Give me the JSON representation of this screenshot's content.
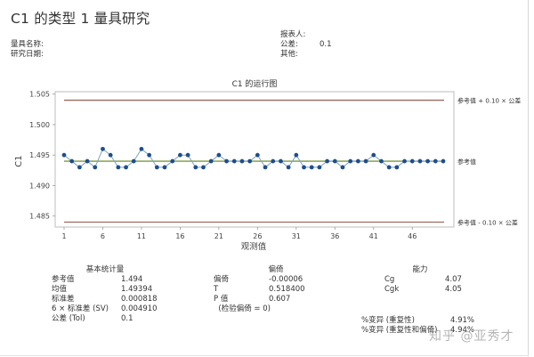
{
  "header": {
    "title": "C1 的类型 1 量具研究",
    "left_fields": [
      {
        "label": "量具名称:",
        "value": ""
      },
      {
        "label": "研究日期:",
        "value": ""
      }
    ],
    "right_fields": [
      {
        "label": "报表人:",
        "value": ""
      },
      {
        "label": "公差:",
        "value": "0.1"
      },
      {
        "label": "其他:",
        "value": ""
      }
    ]
  },
  "chart_data": {
    "type": "line",
    "title": "C1 的运行图",
    "xlabel": "观测值",
    "ylabel": "C1",
    "x": [
      1,
      2,
      3,
      4,
      5,
      6,
      7,
      8,
      9,
      10,
      11,
      12,
      13,
      14,
      15,
      16,
      17,
      18,
      19,
      20,
      21,
      22,
      23,
      24,
      25,
      26,
      27,
      28,
      29,
      30,
      31,
      32,
      33,
      34,
      35,
      36,
      37,
      38,
      39,
      40,
      41,
      42,
      43,
      44,
      45,
      46,
      47,
      48,
      49,
      50
    ],
    "values": [
      1.495,
      1.494,
      1.493,
      1.494,
      1.493,
      1.496,
      1.495,
      1.493,
      1.493,
      1.494,
      1.496,
      1.495,
      1.493,
      1.493,
      1.494,
      1.495,
      1.495,
      1.493,
      1.493,
      1.494,
      1.495,
      1.494,
      1.494,
      1.494,
      1.494,
      1.495,
      1.493,
      1.494,
      1.494,
      1.493,
      1.495,
      1.493,
      1.493,
      1.493,
      1.494,
      1.494,
      1.493,
      1.494,
      1.494,
      1.494,
      1.495,
      1.494,
      1.493,
      1.493,
      1.494,
      1.494,
      1.494,
      1.494,
      1.494,
      1.494
    ],
    "xticks": [
      "1",
      "6",
      "11",
      "16",
      "21",
      "26",
      "31",
      "36",
      "41",
      "46"
    ],
    "yticks": [
      "1.485",
      "1.490",
      "1.495",
      "1.500",
      "1.505"
    ],
    "ylim": [
      1.4832,
      1.5054
    ],
    "xlim": [
      0,
      51
    ],
    "grid": false,
    "reference_lines": [
      {
        "name": "参考值 + 0.10 × 公差",
        "value": 1.504,
        "color": "#9c6b5e"
      },
      {
        "name": "参考值",
        "value": 1.494,
        "color": "#7a9a3a"
      },
      {
        "name": "参考值 - 0.10 × 公差",
        "value": 1.484,
        "color": "#9c6b5e"
      }
    ],
    "series_color": "#1f4e8c",
    "line_color": "#7fa3c8"
  },
  "stats": {
    "basic": {
      "header": "基本统计量",
      "rows": [
        {
          "label": "参考值",
          "value": "1.494"
        },
        {
          "label": "均值",
          "value": "1.49394"
        },
        {
          "label": "标准差",
          "value": "0.000818"
        },
        {
          "label": "6 × 标准差 (SV)",
          "value": "0.004910"
        },
        {
          "label": "公差 (Tol)",
          "value": "0.1"
        }
      ]
    },
    "bias": {
      "header": "偏倚",
      "rows": [
        {
          "label": "偏倚",
          "value": "-0.00006"
        },
        {
          "label": "T",
          "value": "0.518400"
        },
        {
          "label": "P 值",
          "value": "0.607"
        },
        {
          "label": "  (检验偏倚 = 0)",
          "value": ""
        }
      ]
    },
    "capability": {
      "header": "能力",
      "rows": [
        {
          "label": "Cg",
          "value": "4.07"
        },
        {
          "label": "Cgk",
          "value": "4.05"
        }
      ]
    },
    "variation": {
      "rows": [
        {
          "label": "%变异 (重复性)",
          "value": "4.91%"
        },
        {
          "label": "%变异 (重复性和偏倚)",
          "value": "4.94%"
        }
      ]
    }
  },
  "watermark": "知乎 @亚秀才"
}
